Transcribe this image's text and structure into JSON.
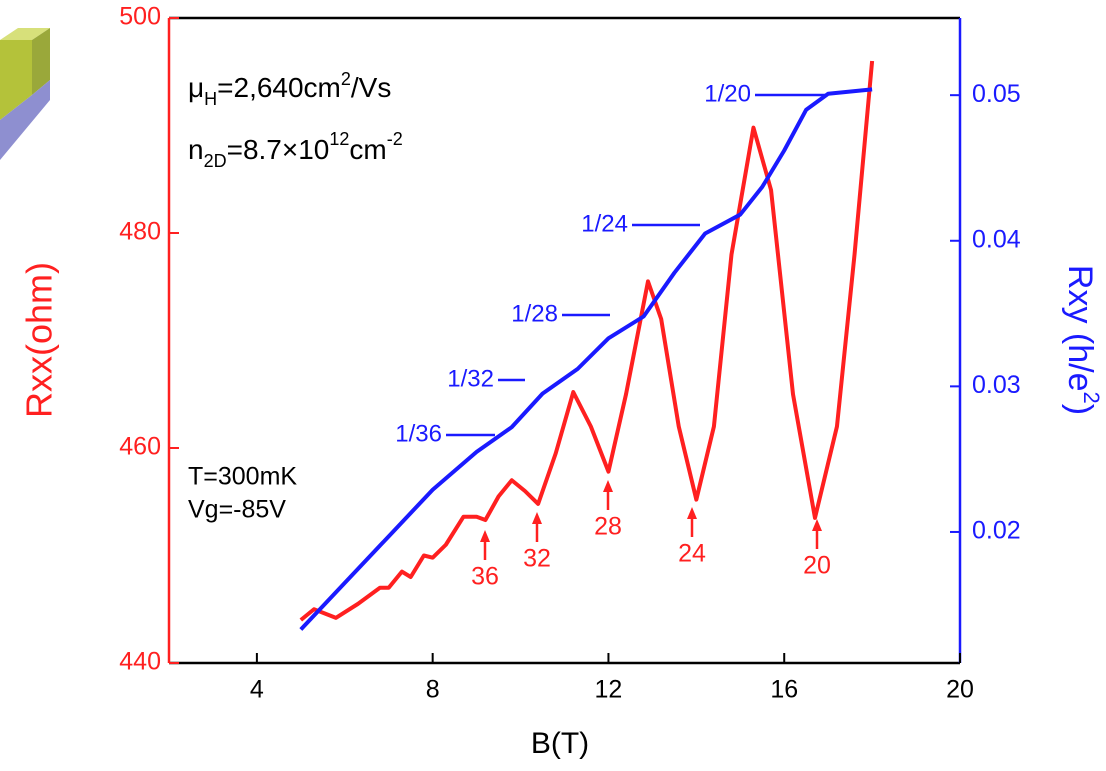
{
  "chart_data": {
    "type": "line",
    "x_label": "B(T)",
    "y_label": "Rxx(ohm)",
    "y2_label": [
      "Rxy (h/e",
      "2",
      ")"
    ],
    "xlim": [
      2,
      20
    ],
    "xticks": [
      4,
      8,
      12,
      16,
      20
    ],
    "ylim": [
      440,
      500
    ],
    "yticks": [
      440,
      460,
      480,
      500
    ],
    "y2lim": [
      0.011,
      0.0553
    ],
    "y2ticks": [
      0.02,
      0.03,
      0.04,
      0.05
    ],
    "y_color": "#ff2020",
    "y2_color": "#1a1aff",
    "series": [
      {
        "color": "#ff2020",
        "x": [
          5.0,
          5.3,
          5.8,
          6.3,
          6.8,
          7.0,
          7.3,
          7.5,
          7.8,
          8.0,
          8.3,
          8.7,
          9.0,
          9.2,
          9.5,
          9.8,
          10.1,
          10.4,
          10.8,
          11.2,
          11.6,
          12.0,
          12.4,
          12.9,
          13.2,
          13.6,
          14.0,
          14.4,
          14.8,
          15.3,
          15.7,
          16.2,
          16.7,
          17.2,
          17.6,
          18.0
        ],
        "values": [
          444,
          445,
          444.2,
          445.5,
          447,
          447,
          448.5,
          448,
          450,
          449.8,
          451,
          453.6,
          453.6,
          453.3,
          455.5,
          457,
          456,
          454.8,
          459.5,
          465.2,
          462,
          457.8,
          465,
          475.5,
          472,
          462,
          455.2,
          462,
          478,
          489.8,
          484,
          465,
          453.5,
          462,
          478,
          496
        ]
      },
      {
        "color": "#1a1aff",
        "axis": "y2",
        "x": [
          5,
          6,
          7,
          8,
          9,
          9.8,
          10.5,
          11.3,
          12,
          12.8,
          13.5,
          14.2,
          15,
          15.5,
          16,
          16.5,
          17,
          18
        ],
        "values": [
          0.0133,
          0.0165,
          0.0197,
          0.0229,
          0.0255,
          0.0272,
          0.0295,
          0.0312,
          0.0333,
          0.0348,
          0.0378,
          0.0405,
          0.0418,
          0.0437,
          0.0462,
          0.049,
          0.0501,
          0.0504
        ]
      }
    ],
    "mobility": [
      "μ",
      "H",
      "=2,640cm",
      "2",
      "/Vs"
    ],
    "density": [
      "n",
      "2D",
      "=8.7×10",
      "12",
      "cm",
      "-2"
    ],
    "conditions": [
      "T=300mK",
      "Vg=-85V"
    ],
    "plateau_labels": [
      "1/20",
      "1/24",
      "1/28",
      "1/32",
      "1/36"
    ],
    "minima_labels": [
      "36",
      "32",
      "28",
      "24",
      "20"
    ]
  }
}
